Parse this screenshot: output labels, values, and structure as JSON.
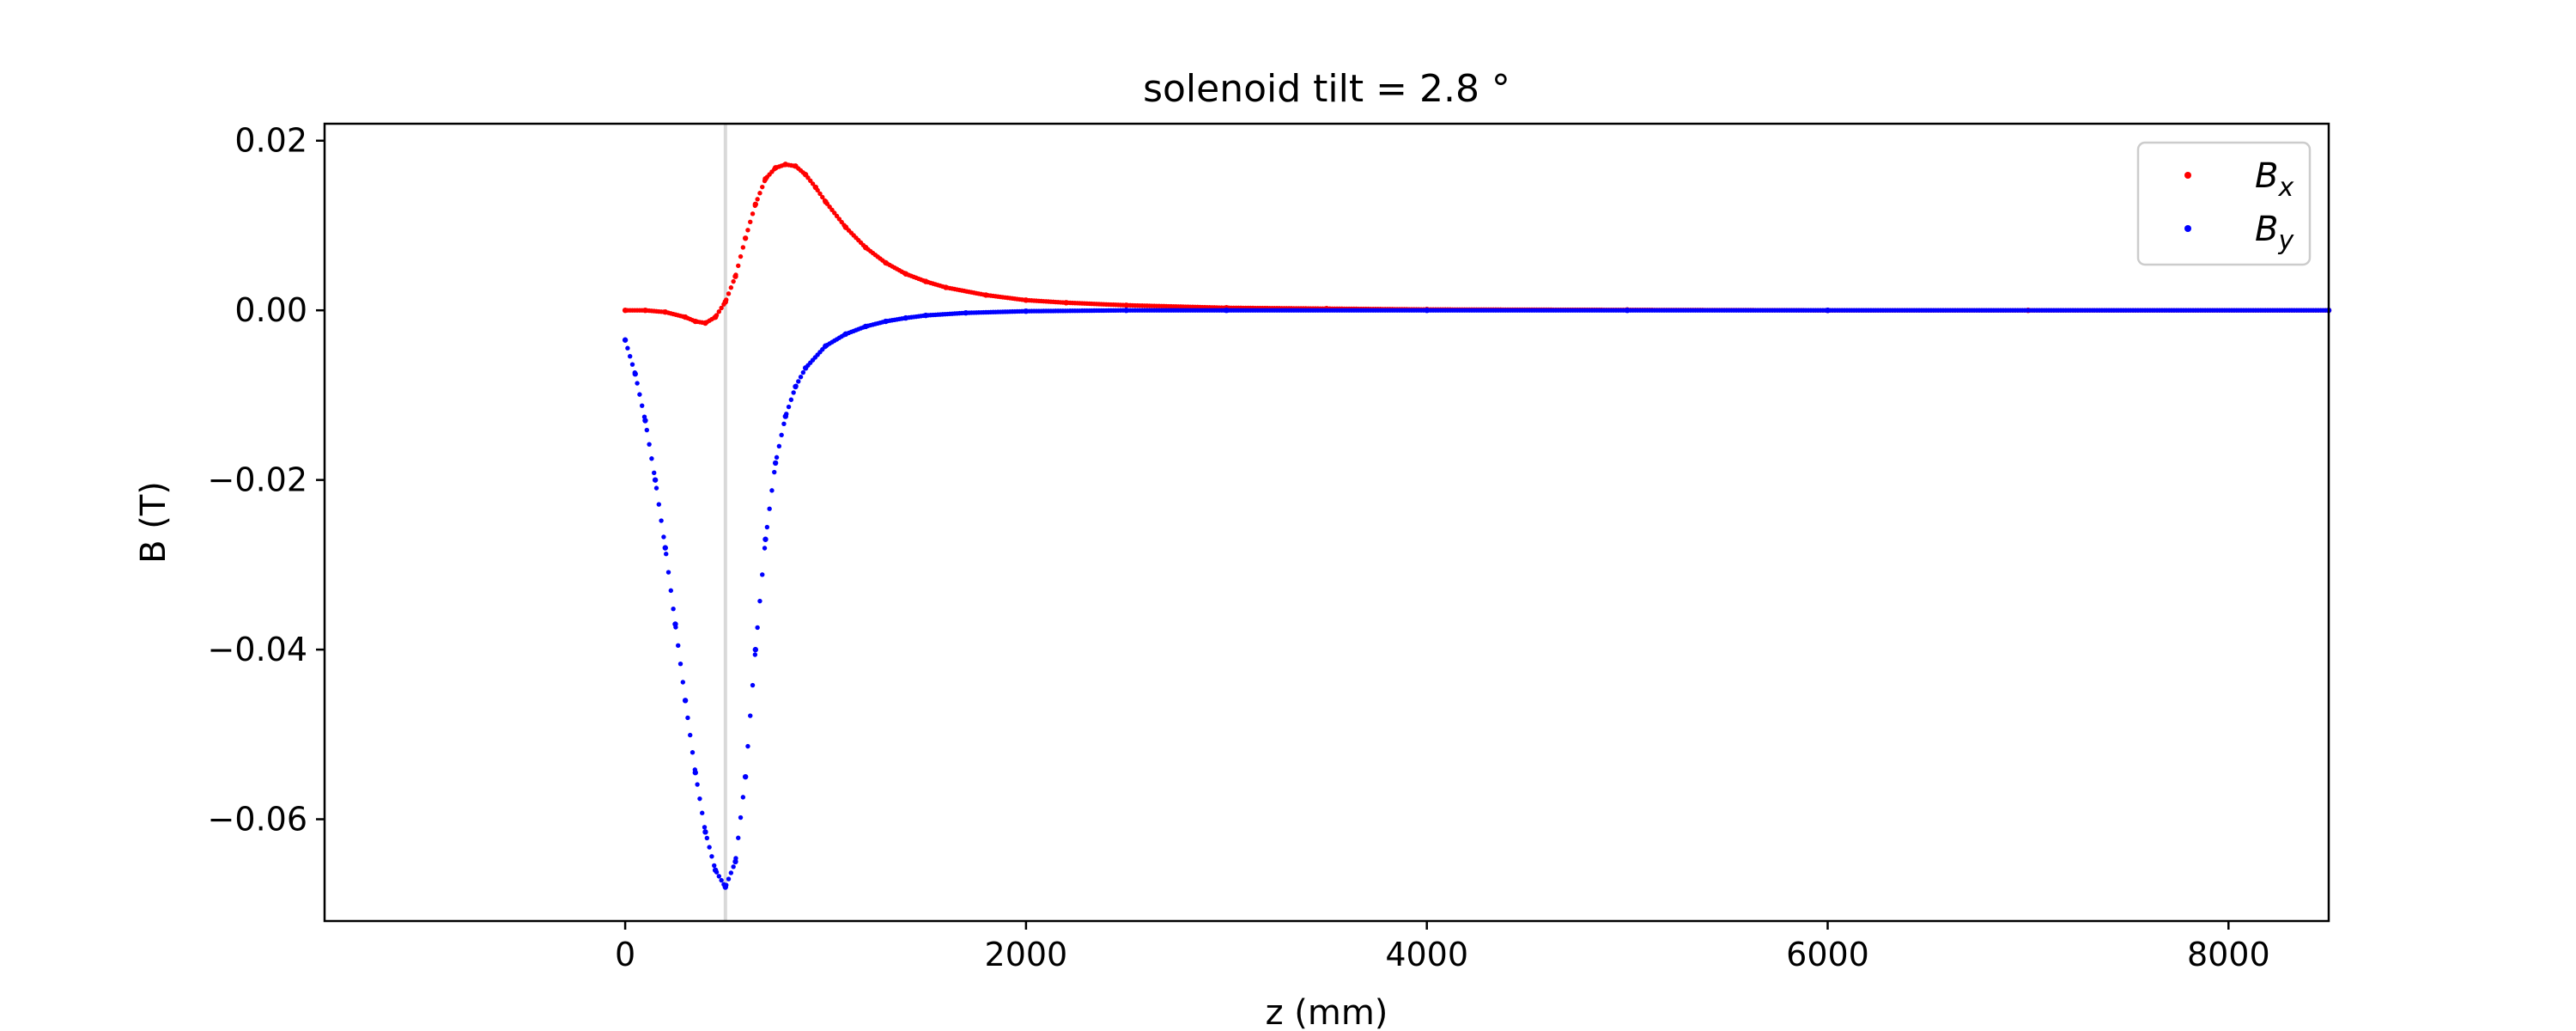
{
  "chart_data": {
    "type": "scatter",
    "title": "solenoid tilt = 2.8 °",
    "xlabel": "z (mm)",
    "ylabel": "B (T)",
    "xlim": [
      -1500,
      8500
    ],
    "ylim": [
      -0.072,
      0.022
    ],
    "xticks": [
      0,
      2000,
      4000,
      6000,
      8000
    ],
    "xtick_labels": [
      "0",
      "2000",
      "4000",
      "6000",
      "8000"
    ],
    "yticks": [
      0.02,
      0.0,
      -0.02,
      -0.04,
      -0.06
    ],
    "ytick_labels": [
      "0.02",
      "0.00",
      "−0.02",
      "−0.04",
      "−0.06"
    ],
    "grid": false,
    "legend_position": "top-right",
    "vline_x": 500,
    "colors": {
      "Bx": "#ff0000",
      "By": "#0000ff",
      "vline": "#d9d9d9"
    },
    "series": [
      {
        "name": "Bx",
        "label_base": "B",
        "label_sub": "x",
        "color": "#ff0000",
        "x": [
          0,
          100,
          200,
          300,
          350,
          400,
          450,
          500,
          550,
          600,
          650,
          700,
          750,
          800,
          850,
          900,
          950,
          1000,
          1100,
          1200,
          1300,
          1400,
          1500,
          1600,
          1800,
          2000,
          2200,
          2500,
          3000,
          3500,
          4000,
          5000,
          6000,
          7000,
          8500
        ],
        "y": [
          0.0,
          0.0,
          -0.0002,
          -0.0008,
          -0.0013,
          -0.0015,
          -0.0008,
          0.001,
          0.004,
          0.0085,
          0.0125,
          0.0155,
          0.0168,
          0.0172,
          0.017,
          0.016,
          0.0145,
          0.0128,
          0.0098,
          0.0074,
          0.0056,
          0.0043,
          0.0034,
          0.0027,
          0.0018,
          0.0012,
          0.0009,
          0.0006,
          0.0003,
          0.0002,
          0.0001,
          5e-05,
          0.0,
          0.0,
          0.0
        ]
      },
      {
        "name": "By",
        "label_base": "B",
        "label_sub": "y",
        "color": "#0000ff",
        "x": [
          0,
          50,
          100,
          150,
          200,
          250,
          300,
          350,
          400,
          450,
          500,
          550,
          600,
          650,
          700,
          750,
          800,
          850,
          900,
          1000,
          1100,
          1200,
          1300,
          1400,
          1500,
          1700,
          2000,
          2500,
          3000,
          4000,
          5000,
          6000,
          8500
        ],
        "y": [
          -0.0035,
          -0.0075,
          -0.013,
          -0.02,
          -0.028,
          -0.037,
          -0.046,
          -0.0545,
          -0.0615,
          -0.066,
          -0.068,
          -0.065,
          -0.055,
          -0.04,
          -0.027,
          -0.018,
          -0.0125,
          -0.009,
          -0.0068,
          -0.0042,
          -0.0028,
          -0.0019,
          -0.0013,
          -0.0009,
          -0.0006,
          -0.0003,
          -0.0001,
          0.0,
          0.0,
          0.0,
          0.0,
          0.0,
          0.0
        ]
      }
    ]
  }
}
